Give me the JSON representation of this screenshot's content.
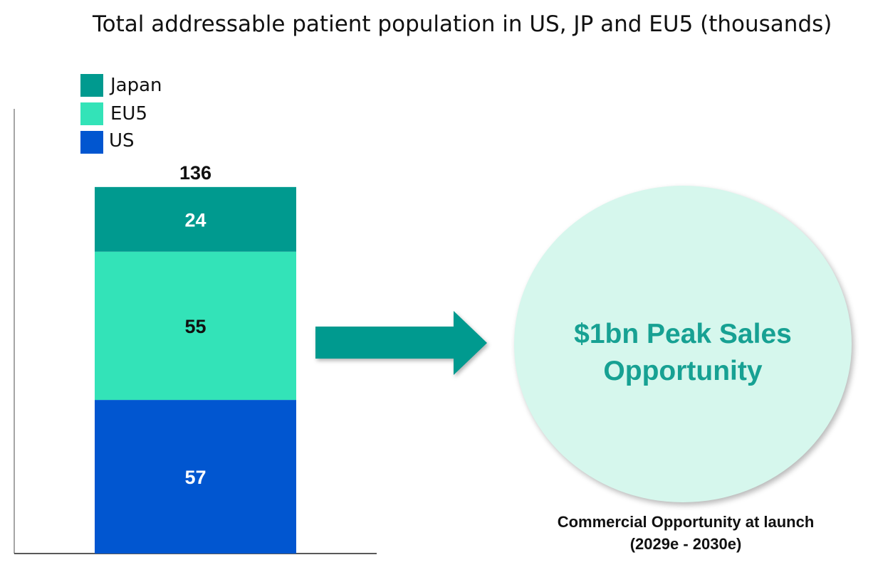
{
  "chart_data": {
    "type": "bar",
    "stacked": true,
    "title": "Total addressable patient population in US, JP and EU5 (thousands)",
    "categories": [
      ""
    ],
    "series": [
      {
        "name": "US",
        "values": [
          57
        ],
        "color": "#0156d0"
      },
      {
        "name": "EU5",
        "values": [
          55
        ],
        "color": "#33e3b8"
      },
      {
        "name": "Japan",
        "values": [
          24
        ],
        "color": "#009a8f"
      }
    ],
    "total_label": "136",
    "legend_order": [
      "Japan",
      "EU5",
      "US"
    ],
    "legend_position": "top-left",
    "ylim": [
      0,
      165
    ],
    "grid": false
  },
  "callout": {
    "text": "$1bn Peak Sales Opportunity",
    "caption": "Commercial Opportunity at launch (2029e - 2030e)",
    "circle_color": "#d6f7ed",
    "text_color": "#17a193",
    "arrow_color": "#009a8f"
  }
}
